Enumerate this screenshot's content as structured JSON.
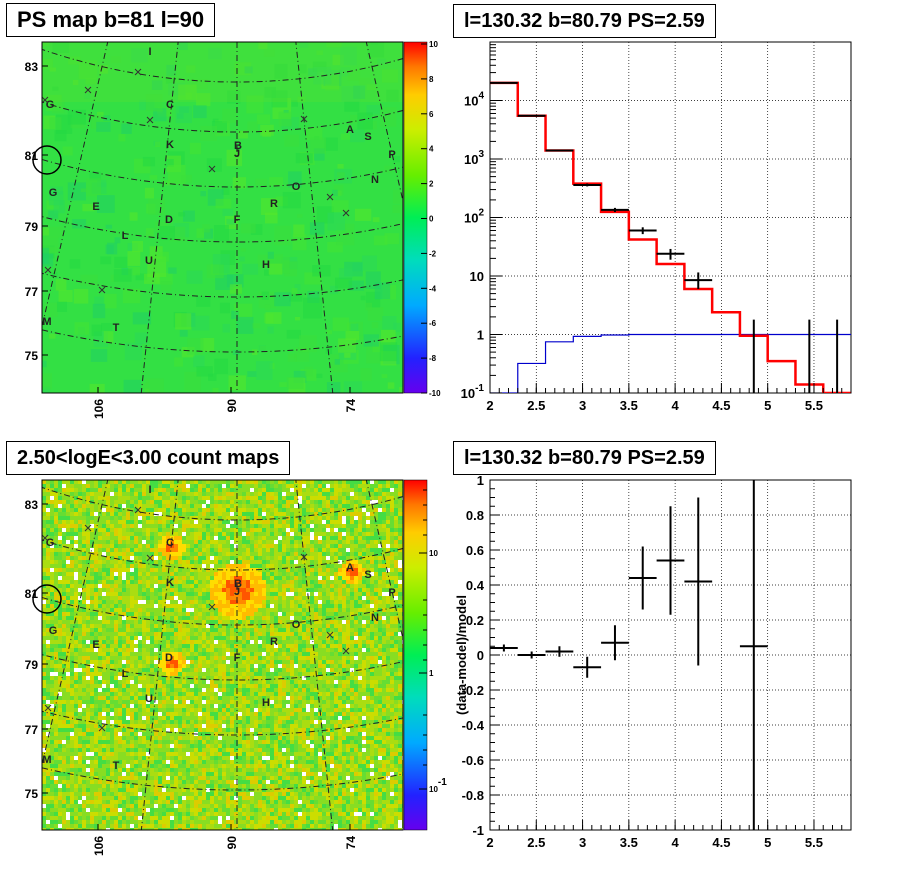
{
  "panels": {
    "tl": {
      "title": "PS map b=81 l=90"
    },
    "tr": {
      "title": "l=130.32 b=80.79 PS=2.59"
    },
    "bl": {
      "title": "2.50<logE<3.00 count maps"
    },
    "br": {
      "title": "l=130.32 b=80.79 PS=2.59"
    }
  },
  "colors": {
    "map_bg_top": "#33dd33",
    "map_bg_bottom": "#99dd22",
    "red_model": "#ff0000",
    "blue_model": "#0000cc",
    "data": "#000000"
  },
  "chart_data": [
    {
      "id": "ps-map",
      "type": "heatmap",
      "title": "PS map b=81 l=90",
      "lat_ticks": [
        "83",
        "81",
        "79",
        "77",
        "75"
      ],
      "lon_ticks": [
        "106",
        "90",
        "74"
      ],
      "colorbar": {
        "scale": "linear",
        "range": [
          -10,
          10
        ],
        "ticks": [
          "10",
          "8",
          "6",
          "4",
          "2",
          "0",
          "-2",
          "-4",
          "-6",
          "-8",
          "-10"
        ]
      },
      "labels": [
        "I",
        "C",
        "K",
        "B",
        "J",
        "A",
        "S",
        "P",
        "N",
        "O",
        "R",
        "F",
        "D",
        "E",
        "G",
        "L",
        "U",
        "H",
        "M",
        "T",
        "G"
      ]
    },
    {
      "id": "spectrum",
      "type": "line",
      "title": "l=130.32 b=80.79 PS=2.59",
      "xlim": [
        2,
        5.9
      ],
      "ylim": [
        0.1,
        100000
      ],
      "yscale": "log",
      "grid": true,
      "x_ticks": [
        "2",
        "2.5",
        "3",
        "3.5",
        "4",
        "4.5",
        "5",
        "5.5"
      ],
      "y_ticks": [
        "10^4",
        "10^3",
        "10^2",
        "10",
        "1",
        "10^-1"
      ],
      "red_model": {
        "edges": [
          2,
          2.3,
          2.6,
          2.9,
          3.2,
          3.5,
          3.8,
          4.1,
          4.4,
          4.7,
          5.0,
          5.3,
          5.6,
          5.9
        ],
        "values": [
          20000,
          5500,
          1400,
          380,
          125,
          42,
          16,
          6,
          2.4,
          0.95,
          0.35,
          0.14,
          0.05
        ]
      },
      "blue_model": {
        "edges": [
          2,
          2.3,
          2.6,
          2.9,
          3.2,
          3.5,
          3.8,
          4.1,
          4.4,
          4.7,
          5.0,
          5.3,
          5.6,
          5.9
        ],
        "values": [
          0.05,
          0.32,
          0.75,
          0.93,
          0.98,
          1.0,
          1.0,
          1.0,
          1.0,
          1.0,
          1.0,
          1.0,
          1.0
        ]
      },
      "data_points": [
        {
          "x": 2.15,
          "y": 20000,
          "xerr": 0.15,
          "ylo": 19800,
          "yhi": 20200
        },
        {
          "x": 2.45,
          "y": 5500,
          "xerr": 0.15,
          "ylo": 5400,
          "yhi": 5600
        },
        {
          "x": 2.75,
          "y": 1400,
          "xerr": 0.15,
          "ylo": 1360,
          "yhi": 1440
        },
        {
          "x": 3.05,
          "y": 360,
          "xerr": 0.15,
          "ylo": 340,
          "yhi": 380
        },
        {
          "x": 3.35,
          "y": 135,
          "xerr": 0.15,
          "ylo": 124,
          "yhi": 146
        },
        {
          "x": 3.65,
          "y": 60,
          "xerr": 0.15,
          "ylo": 52,
          "yhi": 68
        },
        {
          "x": 3.95,
          "y": 24,
          "xerr": 0.15,
          "ylo": 19,
          "yhi": 29
        },
        {
          "x": 4.25,
          "y": 8.5,
          "xerr": 0.15,
          "ylo": 6,
          "yhi": 11.5
        },
        {
          "x": 4.85,
          "y": 0.1,
          "xerr": 0,
          "ylo": 0.1,
          "yhi": 1.8
        },
        {
          "x": 5.45,
          "y": 0.1,
          "xerr": 0,
          "ylo": 0.1,
          "yhi": 1.8
        },
        {
          "x": 5.75,
          "y": 0.1,
          "xerr": 0,
          "ylo": 0.1,
          "yhi": 1.8
        }
      ]
    },
    {
      "id": "count-map",
      "type": "heatmap",
      "title": "2.50<logE<3.00 count maps",
      "lat_ticks": [
        "83",
        "81",
        "79",
        "77",
        "75"
      ],
      "lon_ticks": [
        "106",
        "90",
        "74"
      ],
      "colorbar": {
        "scale": "log",
        "ticks": [
          "10",
          "1",
          "10^-1"
        ]
      },
      "labels": [
        "I",
        "C",
        "K",
        "B",
        "J",
        "A",
        "S",
        "P",
        "N",
        "O",
        "R",
        "F",
        "D",
        "E",
        "G",
        "L",
        "U",
        "H",
        "M",
        "T",
        "G"
      ]
    },
    {
      "id": "residuals",
      "type": "scatter",
      "title": "l=130.32 b=80.79 PS=2.59",
      "ylabel": "(data-model)/model",
      "xlim": [
        2,
        5.9
      ],
      "ylim": [
        -1,
        1
      ],
      "grid": true,
      "x_ticks": [
        "2",
        "2.5",
        "3",
        "3.5",
        "4",
        "4.5",
        "5",
        "5.5"
      ],
      "y_ticks": [
        "1",
        "0.8",
        "0.6",
        "0.4",
        "0.2",
        "0",
        "-0.2",
        "-0.4",
        "-0.6",
        "-0.8",
        "-1"
      ],
      "points": [
        {
          "x": 2.15,
          "y": 0.04,
          "xerr": 0.15,
          "yerr": 0.02
        },
        {
          "x": 2.45,
          "y": 0.0,
          "xerr": 0.15,
          "yerr": 0.02
        },
        {
          "x": 2.75,
          "y": 0.02,
          "xerr": 0.15,
          "yerr": 0.03
        },
        {
          "x": 3.05,
          "y": -0.07,
          "xerr": 0.15,
          "yerr": 0.06
        },
        {
          "x": 3.35,
          "y": 0.07,
          "xerr": 0.15,
          "yerr": 0.1
        },
        {
          "x": 3.65,
          "y": 0.44,
          "xerr": 0.15,
          "yerr": 0.18
        },
        {
          "x": 3.95,
          "y": 0.54,
          "xerr": 0.15,
          "yerr": 0.31
        },
        {
          "x": 4.25,
          "y": 0.42,
          "xerr": 0.15,
          "yerr": 0.48
        },
        {
          "x": 4.85,
          "y": 0.05,
          "xerr": 0.15,
          "yerr": 1.2
        }
      ]
    }
  ]
}
